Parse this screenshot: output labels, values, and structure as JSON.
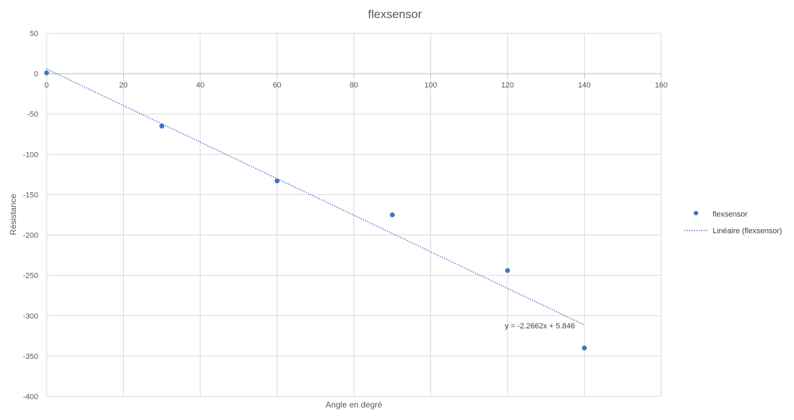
{
  "chart_data": {
    "type": "scatter",
    "title": "flexsensor",
    "xlabel": "Angle en degré",
    "ylabel": "Résistance",
    "xlim": [
      0,
      160
    ],
    "ylim": [
      -400,
      50
    ],
    "xticks": [
      0,
      20,
      40,
      60,
      80,
      100,
      120,
      140,
      160
    ],
    "yticks": [
      50,
      0,
      -50,
      -100,
      -150,
      -200,
      -250,
      -300,
      -350,
      -400
    ],
    "grid": true,
    "legend_position": "right",
    "series": [
      {
        "name": "flexsensor",
        "color": "#4472c4",
        "marker": "circle",
        "x": [
          0,
          30,
          60,
          90,
          120,
          140
        ],
        "y": [
          1,
          -65,
          -133,
          -175,
          -244,
          -340
        ]
      }
    ],
    "trendline": {
      "name": "Linéaire (flexsensor)",
      "type": "linear",
      "slope": -2.2662,
      "intercept": 5.846,
      "x_range": [
        0,
        140
      ],
      "color": "#4472c4",
      "style": "dotted",
      "equation": "y = -2.2662x + 5.846"
    }
  }
}
